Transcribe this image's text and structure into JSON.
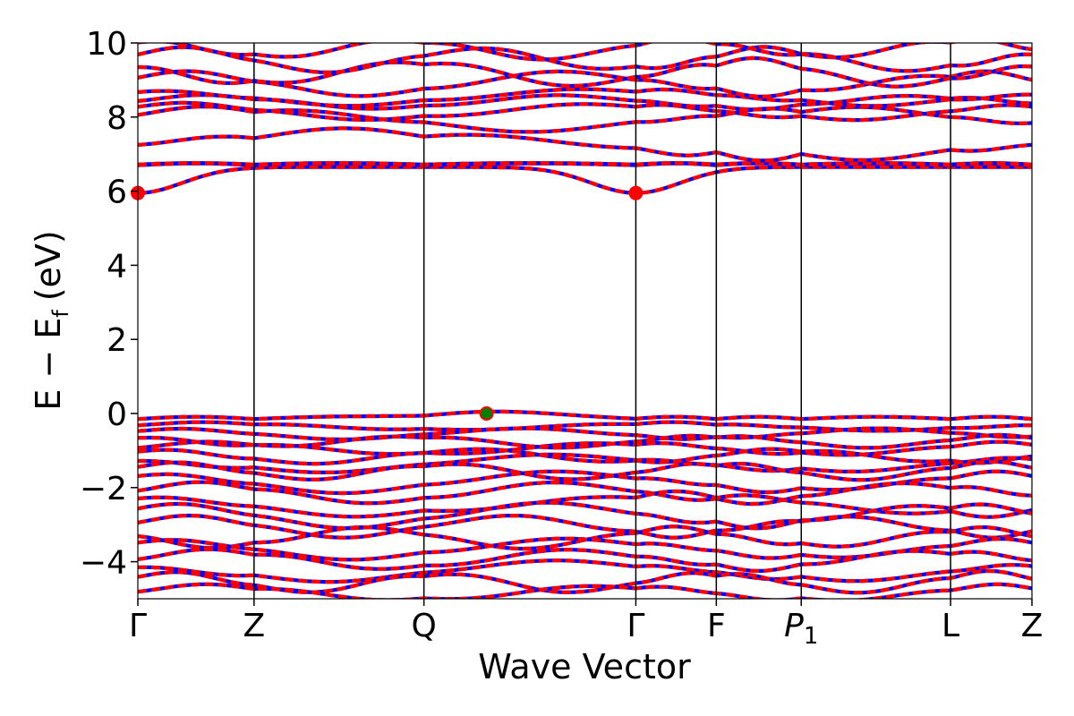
{
  "chart_data": {
    "type": "line",
    "xlabel": "Wave Vector",
    "ylabel": {
      "base": "E − E",
      "subscript": "f",
      "unit": "(eV)"
    },
    "ylim": [
      -5,
      10
    ],
    "yticks": [
      -4,
      -2,
      0,
      2,
      4,
      6,
      8,
      10
    ],
    "ytick_labels": [
      "−4",
      "−2",
      "0",
      "2",
      "4",
      "6",
      "8",
      "10"
    ],
    "kpoints": [
      {
        "label": "Γ",
        "x": 0.0
      },
      {
        "label": "Z",
        "x": 0.13
      },
      {
        "label": "Q",
        "x": 0.32
      },
      {
        "label": "Γ",
        "x": 0.557
      },
      {
        "label": "F",
        "x": 0.647
      },
      {
        "label": "P",
        "sub": "1",
        "x": 0.742
      },
      {
        "label": "L",
        "x": 0.909
      },
      {
        "label": "Z",
        "x": 1.0
      }
    ],
    "xlim": [
      0,
      1
    ],
    "grid": false,
    "colors": {
      "up": "#ff0000",
      "down": "#0000ff",
      "vbm": "#008000",
      "cbm": "#ff0000",
      "vline": "#000000"
    },
    "markers": [
      {
        "name": "VBM",
        "x": 0.39,
        "y": 0.0,
        "color": "#008000"
      },
      {
        "name": "CBM",
        "x": 0.0,
        "y": 5.95,
        "color": "#ff0000"
      },
      {
        "name": "CBM",
        "x": 0.557,
        "y": 5.95,
        "color": "#ff0000"
      }
    ],
    "bands_upper": [
      {
        "kind": "cbm",
        "base": 6.65,
        "min": 5.95
      },
      {
        "kind": "flat",
        "base": 6.7,
        "amp": 0.05
      },
      {
        "kind": "flat",
        "base": 6.72,
        "amp": 0.04
      },
      {
        "kind": "wave",
        "base": 7.25,
        "amp": 0.45,
        "freq": 2.0,
        "phase": 0.0
      },
      {
        "kind": "wave",
        "base": 7.95,
        "amp": 0.35,
        "freq": 3.0,
        "phase": 0.6
      },
      {
        "kind": "wave",
        "base": 8.15,
        "amp": 0.25,
        "freq": 4.0,
        "phase": 1.2
      },
      {
        "kind": "wave",
        "base": 8.4,
        "amp": 0.2,
        "freq": 5.0,
        "phase": 0.3
      },
      {
        "kind": "wave",
        "base": 8.55,
        "amp": 0.25,
        "freq": 3.5,
        "phase": 2.0
      },
      {
        "kind": "wave",
        "base": 8.9,
        "amp": 0.35,
        "freq": 4.5,
        "phase": 1.0
      },
      {
        "kind": "wave",
        "base": 9.2,
        "amp": 0.4,
        "freq": 5.5,
        "phase": 2.4
      },
      {
        "kind": "wave",
        "base": 9.55,
        "amp": 0.35,
        "freq": 6.0,
        "phase": 0.8
      },
      {
        "kind": "wave",
        "base": 9.85,
        "amp": 0.3,
        "freq": 6.5,
        "phase": 1.7
      }
    ],
    "bands_lower": [
      {
        "kind": "vbm",
        "base": -0.15,
        "top": 0.0
      },
      {
        "kind": "wave",
        "base": -0.35,
        "amp": 0.12,
        "freq": 4.0,
        "phase": 0.5
      },
      {
        "kind": "wave",
        "base": -0.55,
        "amp": 0.15,
        "freq": 5.0,
        "phase": 1.1
      },
      {
        "kind": "wave",
        "base": -0.75,
        "amp": 0.18,
        "freq": 6.0,
        "phase": 2.0
      },
      {
        "kind": "wave",
        "base": -0.95,
        "amp": 0.2,
        "freq": 4.5,
        "phase": 0.2
      },
      {
        "kind": "wave",
        "base": -1.15,
        "amp": 0.22,
        "freq": 5.5,
        "phase": 1.5
      },
      {
        "kind": "wave",
        "base": -1.35,
        "amp": 0.25,
        "freq": 3.5,
        "phase": 2.6
      },
      {
        "kind": "wave",
        "base": -1.55,
        "amp": 0.25,
        "freq": 6.5,
        "phase": 0.9
      },
      {
        "kind": "wave",
        "base": -1.85,
        "amp": 0.3,
        "freq": 4.0,
        "phase": 1.8
      },
      {
        "kind": "wave",
        "base": -2.15,
        "amp": 0.3,
        "freq": 5.0,
        "phase": 0.4
      },
      {
        "kind": "wave",
        "base": -2.45,
        "amp": 0.35,
        "freq": 3.0,
        "phase": 2.2
      },
      {
        "kind": "wave",
        "base": -2.75,
        "amp": 0.35,
        "freq": 4.5,
        "phase": 1.3
      },
      {
        "kind": "wave",
        "base": -3.05,
        "amp": 0.3,
        "freq": 5.5,
        "phase": 0.7
      },
      {
        "kind": "wave",
        "base": -3.35,
        "amp": 0.3,
        "freq": 6.0,
        "phase": 2.9
      },
      {
        "kind": "wave",
        "base": -3.65,
        "amp": 0.3,
        "freq": 4.0,
        "phase": 1.6
      },
      {
        "kind": "wave",
        "base": -3.95,
        "amp": 0.3,
        "freq": 5.0,
        "phase": 0.1
      },
      {
        "kind": "wave",
        "base": -4.25,
        "amp": 0.3,
        "freq": 3.5,
        "phase": 2.5
      },
      {
        "kind": "wave",
        "base": -4.55,
        "amp": 0.3,
        "freq": 6.5,
        "phase": 1.0
      },
      {
        "kind": "wave",
        "base": -4.85,
        "amp": 0.25,
        "freq": 4.5,
        "phase": 0.3
      }
    ]
  }
}
